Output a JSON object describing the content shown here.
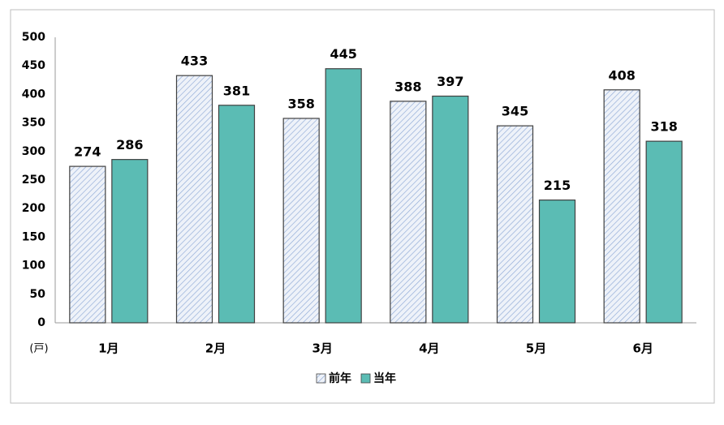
{
  "chart_data": {
    "type": "bar",
    "categories": [
      "1月",
      "2月",
      "3月",
      "4月",
      "5月",
      "6月"
    ],
    "series": [
      {
        "name": "前年",
        "color": "#8ea9d6",
        "hatch": true,
        "values": [
          274,
          433,
          358,
          388,
          345,
          408
        ]
      },
      {
        "name": "当年",
        "color": "#5bbcb4",
        "hatch": false,
        "values": [
          286,
          381,
          445,
          397,
          215,
          318
        ]
      }
    ],
    "unit": "(戸)",
    "ylim": [
      0,
      500
    ],
    "yticks": [
      0,
      50,
      100,
      150,
      200,
      250,
      300,
      350,
      400,
      450,
      500
    ],
    "grid": false,
    "legend": "bottom"
  }
}
